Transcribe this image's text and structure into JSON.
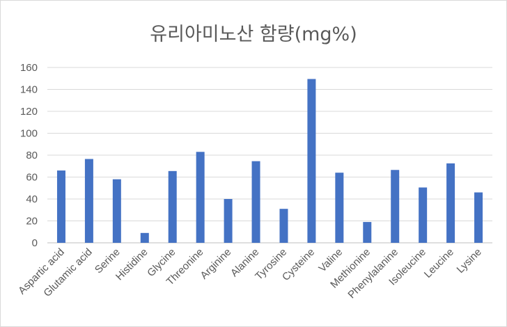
{
  "chart_data": {
    "type": "bar",
    "title": "유리아미노산 함량(mg%)",
    "categories": [
      "Aspartic acid",
      "Glutamic acid",
      "Serine",
      "Histidine",
      "Glycine",
      "Threonine",
      "Arginine",
      "Alanine",
      "Tyrosine",
      "Cysteine",
      "Valine",
      "Methionine",
      "Phenylalanine",
      "Isoleucine",
      "Leucine",
      "Lysine"
    ],
    "values": [
      66,
      76.5,
      58,
      9,
      65.5,
      83,
      40,
      74.5,
      31,
      149.5,
      64,
      19,
      66.5,
      50.5,
      72.5,
      46
    ],
    "ylim": [
      0,
      160
    ],
    "yticks": [
      0,
      20,
      40,
      60,
      80,
      100,
      120,
      140,
      160
    ],
    "xlabel": "",
    "ylabel": "",
    "grid": true,
    "legend": "none",
    "bar_color": "#4472c4",
    "grid_color": "#d9d9d9"
  }
}
